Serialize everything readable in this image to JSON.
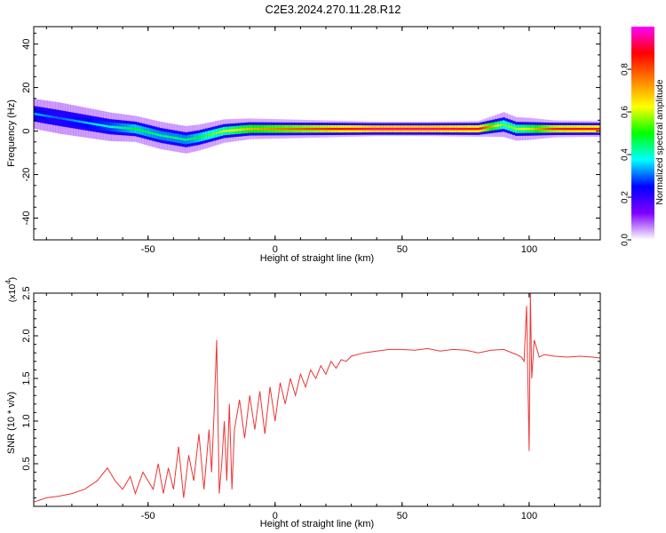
{
  "title": "C2E3.2024.270.11.28.R12",
  "chart_data": [
    {
      "type": "heatmap",
      "xlabel": "Height of straight line (km)",
      "ylabel": "Frequency (Hz)",
      "xlim": [
        -95,
        128
      ],
      "ylim": [
        -50,
        48
      ],
      "xticks": [
        -50,
        0,
        50,
        100
      ],
      "yticks": [
        -40,
        -20,
        0,
        20,
        40
      ],
      "colorbar": {
        "label": "Normalized spectral amplitude",
        "range": [
          0,
          1
        ],
        "ticks": [
          0.0,
          0.2,
          0.4,
          0.6,
          0.8
        ],
        "colormap": [
          "#ffffff",
          "#8000ff",
          "#0000ff",
          "#00ffff",
          "#00ff00",
          "#ffff00",
          "#ff8000",
          "#ff0000",
          "#ff00ff"
        ]
      },
      "ridge": {
        "x": [
          -95,
          -85,
          -75,
          -65,
          -55,
          -45,
          -35,
          -30,
          -20,
          -10,
          0,
          10,
          20,
          30,
          40,
          60,
          80,
          90,
          95,
          100,
          110,
          128
        ],
        "freq": [
          8,
          6,
          4,
          2,
          1,
          -2,
          -4,
          -3,
          0,
          1,
          1,
          1,
          1,
          1,
          1,
          1,
          1,
          3,
          1,
          1,
          1,
          1
        ],
        "amplitude": [
          0.35,
          0.3,
          0.35,
          0.4,
          0.5,
          0.45,
          0.45,
          0.5,
          0.6,
          0.7,
          0.75,
          0.8,
          0.85,
          0.9,
          0.95,
          0.95,
          0.9,
          0.55,
          0.6,
          0.65,
          0.85,
          0.9
        ]
      }
    },
    {
      "type": "line",
      "xlabel": "Height of straight line (km)",
      "ylabel": "SNR (10 * v/v)",
      "yscale_label": "(x10",
      "yscale_exp": "4",
      "yscale_close": ")",
      "xlim": [
        -95,
        128
      ],
      "ylim": [
        0,
        2.5
      ],
      "xticks": [
        -50,
        0,
        50,
        100
      ],
      "yticks": [
        0.5,
        1.0,
        1.5,
        2.0,
        2.5
      ],
      "color": "#ee3333",
      "series": [
        {
          "x": [
            -95,
            -90,
            -85,
            -80,
            -75,
            -70,
            -66,
            -63,
            -60,
            -57,
            -55,
            -52,
            -50,
            -48,
            -46,
            -44,
            -42,
            -40,
            -38,
            -36,
            -34,
            -32,
            -30,
            -28,
            -26,
            -25,
            -24,
            -23,
            -22,
            -21,
            -20,
            -19,
            -18,
            -17,
            -16,
            -14,
            -12,
            -10,
            -8,
            -6,
            -4,
            -2,
            0,
            2,
            4,
            6,
            8,
            10,
            12,
            14,
            16,
            18,
            20,
            22,
            24,
            26,
            28,
            30,
            35,
            40,
            45,
            50,
            55,
            60,
            65,
            70,
            75,
            80,
            85,
            90,
            95,
            97,
            98,
            99,
            99.5,
            100,
            100.5,
            101,
            102,
            104,
            106,
            110,
            115,
            120,
            125,
            128
          ],
          "y": [
            0.05,
            0.1,
            0.12,
            0.15,
            0.2,
            0.3,
            0.45,
            0.3,
            0.2,
            0.35,
            0.15,
            0.4,
            0.3,
            0.2,
            0.5,
            0.15,
            0.45,
            0.2,
            0.7,
            0.1,
            0.6,
            0.3,
            0.85,
            0.2,
            0.9,
            0.4,
            1.1,
            1.95,
            0.15,
            0.5,
            1.0,
            0.3,
            1.2,
            0.2,
            0.9,
            1.25,
            0.8,
            1.3,
            0.9,
            1.35,
            0.85,
            1.4,
            1.0,
            1.45,
            1.2,
            1.5,
            1.3,
            1.55,
            1.4,
            1.6,
            1.5,
            1.65,
            1.55,
            1.7,
            1.62,
            1.72,
            1.7,
            1.76,
            1.8,
            1.82,
            1.84,
            1.84,
            1.83,
            1.85,
            1.82,
            1.84,
            1.83,
            1.8,
            1.83,
            1.84,
            1.78,
            1.75,
            1.7,
            2.35,
            1.45,
            0.65,
            2.5,
            1.5,
            1.95,
            1.75,
            1.78,
            1.76,
            1.75,
            1.76,
            1.75,
            1.74
          ]
        }
      ]
    }
  ]
}
